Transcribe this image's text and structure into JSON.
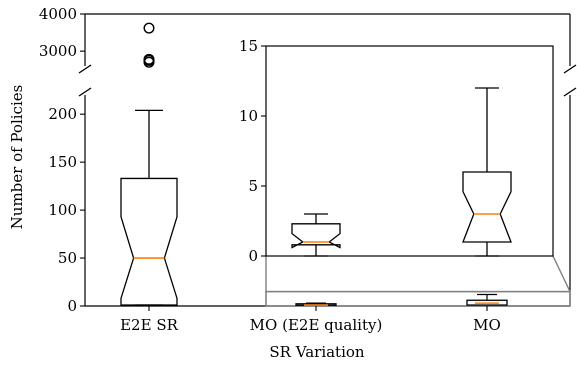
{
  "chart_data": {
    "type": "box",
    "xlabel": "SR Variation",
    "ylabel": "Number of Policies",
    "categories": [
      "E2E SR",
      "MO (E2E quality)",
      "MO"
    ],
    "main_axis": {
      "lower_segment_ylim": [
        0,
        220
      ],
      "upper_segment_ylim": [
        2600,
        4000
      ],
      "lower_ticks": [
        0,
        50,
        100,
        150,
        200
      ],
      "upper_ticks": [
        3000,
        4000
      ],
      "broken_y_axis": true,
      "grid": false
    },
    "boxes": [
      {
        "category": "E2E SR",
        "whisker_low": 1,
        "q1": 1,
        "median": 50,
        "q3": 133,
        "whisker_high": 204,
        "notch_low": 8,
        "notch_high": 93,
        "outliers": [
          2700,
          2750,
          2780,
          3620
        ]
      },
      {
        "category": "MO (E2E quality)",
        "whisker_low": 0,
        "q1": 0.8,
        "median": 1,
        "q3": 2.3,
        "whisker_high": 3,
        "notch_low": 0.6,
        "notch_high": 1.6,
        "outliers": []
      },
      {
        "category": "MO",
        "whisker_low": 0,
        "q1": 1,
        "median": 3,
        "q3": 6,
        "whisker_high": 12,
        "notch_low": 1,
        "notch_high": 4.6,
        "outliers": []
      }
    ],
    "inset": {
      "zoom_of": [
        "MO (E2E quality)",
        "MO"
      ],
      "ylim": [
        0,
        15
      ],
      "ticks": [
        0,
        5,
        10,
        15
      ]
    },
    "colors": {
      "median": "#ff7f0e",
      "box": "#000000",
      "zoom_indicator": "#808080"
    }
  }
}
